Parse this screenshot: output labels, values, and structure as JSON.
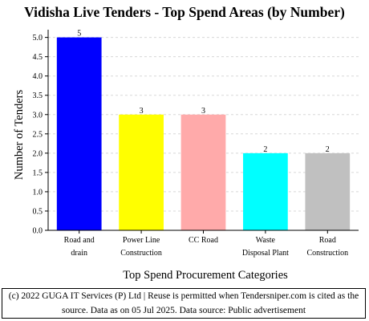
{
  "chart_data": {
    "type": "bar",
    "title": "Vidisha Live Tenders - Top Spend Areas (by Number)",
    "xlabel": "Top Spend Procurement Categories",
    "ylabel": "Number of Tenders",
    "categories": [
      [
        "Road and",
        "drain"
      ],
      [
        "Power Line",
        "Construction"
      ],
      [
        "CC Road"
      ],
      [
        "Waste",
        "Disposal Plant"
      ],
      [
        "Road",
        "Construction"
      ]
    ],
    "values": [
      5,
      3,
      3,
      2,
      2
    ],
    "value_labels": [
      "5",
      "3",
      "3",
      "2",
      "2"
    ],
    "colors": [
      "#0000ff",
      "#ffff00",
      "#ffaaaa",
      "#00ffff",
      "#c0c0c0"
    ],
    "ylim": [
      0,
      5.2
    ],
    "yticks": [
      "0.0",
      "0.5",
      "1.0",
      "1.5",
      "2.0",
      "2.5",
      "3.0",
      "3.5",
      "4.0",
      "4.5",
      "5.0"
    ],
    "grid": true
  },
  "footer": {
    "line1": "(c) 2022 GUGA IT Services (P) Ltd | Reuse is permitted when Tendersniper.com is cited as the",
    "line2": "source. Data as on 05 Jul 2025. Data source: Public advertisement"
  }
}
